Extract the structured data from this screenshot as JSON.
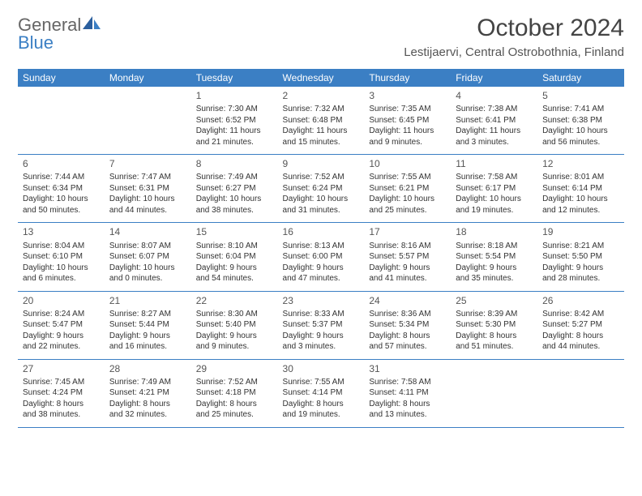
{
  "brand": {
    "part1": "General",
    "part2": "Blue"
  },
  "title": "October 2024",
  "location": "Lestijaervi, Central Ostrobothnia, Finland",
  "colors": {
    "header_bg": "#3b7fc4",
    "header_text": "#ffffff",
    "border": "#3b7fc4",
    "text": "#333333",
    "title_text": "#444444",
    "body_bg": "#ffffff"
  },
  "typography": {
    "title_fontsize": 30,
    "location_fontsize": 15,
    "dayheader_fontsize": 12,
    "daynum_fontsize": 12,
    "cell_fontsize": 10
  },
  "day_headers": [
    "Sunday",
    "Monday",
    "Tuesday",
    "Wednesday",
    "Thursday",
    "Friday",
    "Saturday"
  ],
  "weeks": [
    [
      null,
      null,
      {
        "n": "1",
        "sunrise": "Sunrise: 7:30 AM",
        "sunset": "Sunset: 6:52 PM",
        "daylight1": "Daylight: 11 hours",
        "daylight2": "and 21 minutes."
      },
      {
        "n": "2",
        "sunrise": "Sunrise: 7:32 AM",
        "sunset": "Sunset: 6:48 PM",
        "daylight1": "Daylight: 11 hours",
        "daylight2": "and 15 minutes."
      },
      {
        "n": "3",
        "sunrise": "Sunrise: 7:35 AM",
        "sunset": "Sunset: 6:45 PM",
        "daylight1": "Daylight: 11 hours",
        "daylight2": "and 9 minutes."
      },
      {
        "n": "4",
        "sunrise": "Sunrise: 7:38 AM",
        "sunset": "Sunset: 6:41 PM",
        "daylight1": "Daylight: 11 hours",
        "daylight2": "and 3 minutes."
      },
      {
        "n": "5",
        "sunrise": "Sunrise: 7:41 AM",
        "sunset": "Sunset: 6:38 PM",
        "daylight1": "Daylight: 10 hours",
        "daylight2": "and 56 minutes."
      }
    ],
    [
      {
        "n": "6",
        "sunrise": "Sunrise: 7:44 AM",
        "sunset": "Sunset: 6:34 PM",
        "daylight1": "Daylight: 10 hours",
        "daylight2": "and 50 minutes."
      },
      {
        "n": "7",
        "sunrise": "Sunrise: 7:47 AM",
        "sunset": "Sunset: 6:31 PM",
        "daylight1": "Daylight: 10 hours",
        "daylight2": "and 44 minutes."
      },
      {
        "n": "8",
        "sunrise": "Sunrise: 7:49 AM",
        "sunset": "Sunset: 6:27 PM",
        "daylight1": "Daylight: 10 hours",
        "daylight2": "and 38 minutes."
      },
      {
        "n": "9",
        "sunrise": "Sunrise: 7:52 AM",
        "sunset": "Sunset: 6:24 PM",
        "daylight1": "Daylight: 10 hours",
        "daylight2": "and 31 minutes."
      },
      {
        "n": "10",
        "sunrise": "Sunrise: 7:55 AM",
        "sunset": "Sunset: 6:21 PM",
        "daylight1": "Daylight: 10 hours",
        "daylight2": "and 25 minutes."
      },
      {
        "n": "11",
        "sunrise": "Sunrise: 7:58 AM",
        "sunset": "Sunset: 6:17 PM",
        "daylight1": "Daylight: 10 hours",
        "daylight2": "and 19 minutes."
      },
      {
        "n": "12",
        "sunrise": "Sunrise: 8:01 AM",
        "sunset": "Sunset: 6:14 PM",
        "daylight1": "Daylight: 10 hours",
        "daylight2": "and 12 minutes."
      }
    ],
    [
      {
        "n": "13",
        "sunrise": "Sunrise: 8:04 AM",
        "sunset": "Sunset: 6:10 PM",
        "daylight1": "Daylight: 10 hours",
        "daylight2": "and 6 minutes."
      },
      {
        "n": "14",
        "sunrise": "Sunrise: 8:07 AM",
        "sunset": "Sunset: 6:07 PM",
        "daylight1": "Daylight: 10 hours",
        "daylight2": "and 0 minutes."
      },
      {
        "n": "15",
        "sunrise": "Sunrise: 8:10 AM",
        "sunset": "Sunset: 6:04 PM",
        "daylight1": "Daylight: 9 hours",
        "daylight2": "and 54 minutes."
      },
      {
        "n": "16",
        "sunrise": "Sunrise: 8:13 AM",
        "sunset": "Sunset: 6:00 PM",
        "daylight1": "Daylight: 9 hours",
        "daylight2": "and 47 minutes."
      },
      {
        "n": "17",
        "sunrise": "Sunrise: 8:16 AM",
        "sunset": "Sunset: 5:57 PM",
        "daylight1": "Daylight: 9 hours",
        "daylight2": "and 41 minutes."
      },
      {
        "n": "18",
        "sunrise": "Sunrise: 8:18 AM",
        "sunset": "Sunset: 5:54 PM",
        "daylight1": "Daylight: 9 hours",
        "daylight2": "and 35 minutes."
      },
      {
        "n": "19",
        "sunrise": "Sunrise: 8:21 AM",
        "sunset": "Sunset: 5:50 PM",
        "daylight1": "Daylight: 9 hours",
        "daylight2": "and 28 minutes."
      }
    ],
    [
      {
        "n": "20",
        "sunrise": "Sunrise: 8:24 AM",
        "sunset": "Sunset: 5:47 PM",
        "daylight1": "Daylight: 9 hours",
        "daylight2": "and 22 minutes."
      },
      {
        "n": "21",
        "sunrise": "Sunrise: 8:27 AM",
        "sunset": "Sunset: 5:44 PM",
        "daylight1": "Daylight: 9 hours",
        "daylight2": "and 16 minutes."
      },
      {
        "n": "22",
        "sunrise": "Sunrise: 8:30 AM",
        "sunset": "Sunset: 5:40 PM",
        "daylight1": "Daylight: 9 hours",
        "daylight2": "and 9 minutes."
      },
      {
        "n": "23",
        "sunrise": "Sunrise: 8:33 AM",
        "sunset": "Sunset: 5:37 PM",
        "daylight1": "Daylight: 9 hours",
        "daylight2": "and 3 minutes."
      },
      {
        "n": "24",
        "sunrise": "Sunrise: 8:36 AM",
        "sunset": "Sunset: 5:34 PM",
        "daylight1": "Daylight: 8 hours",
        "daylight2": "and 57 minutes."
      },
      {
        "n": "25",
        "sunrise": "Sunrise: 8:39 AM",
        "sunset": "Sunset: 5:30 PM",
        "daylight1": "Daylight: 8 hours",
        "daylight2": "and 51 minutes."
      },
      {
        "n": "26",
        "sunrise": "Sunrise: 8:42 AM",
        "sunset": "Sunset: 5:27 PM",
        "daylight1": "Daylight: 8 hours",
        "daylight2": "and 44 minutes."
      }
    ],
    [
      {
        "n": "27",
        "sunrise": "Sunrise: 7:45 AM",
        "sunset": "Sunset: 4:24 PM",
        "daylight1": "Daylight: 8 hours",
        "daylight2": "and 38 minutes."
      },
      {
        "n": "28",
        "sunrise": "Sunrise: 7:49 AM",
        "sunset": "Sunset: 4:21 PM",
        "daylight1": "Daylight: 8 hours",
        "daylight2": "and 32 minutes."
      },
      {
        "n": "29",
        "sunrise": "Sunrise: 7:52 AM",
        "sunset": "Sunset: 4:18 PM",
        "daylight1": "Daylight: 8 hours",
        "daylight2": "and 25 minutes."
      },
      {
        "n": "30",
        "sunrise": "Sunrise: 7:55 AM",
        "sunset": "Sunset: 4:14 PM",
        "daylight1": "Daylight: 8 hours",
        "daylight2": "and 19 minutes."
      },
      {
        "n": "31",
        "sunrise": "Sunrise: 7:58 AM",
        "sunset": "Sunset: 4:11 PM",
        "daylight1": "Daylight: 8 hours",
        "daylight2": "and 13 minutes."
      },
      null,
      null
    ]
  ]
}
